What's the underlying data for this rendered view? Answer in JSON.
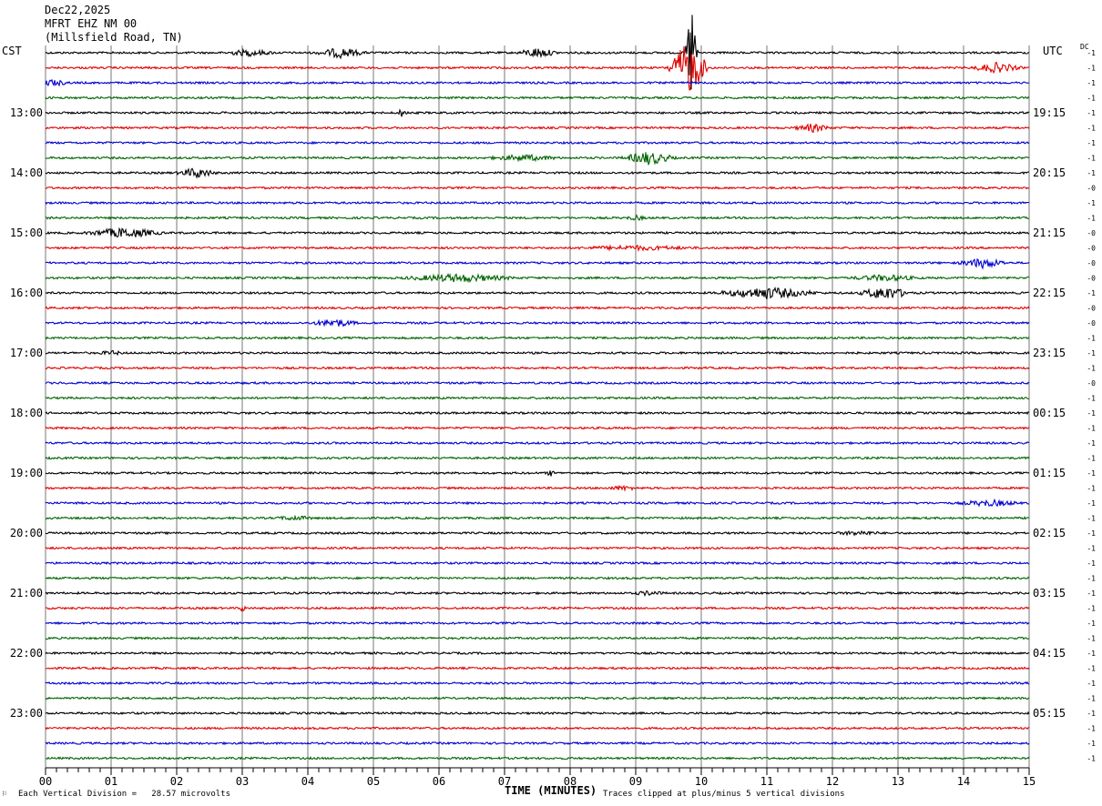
{
  "header": {
    "date": "Dec22,2025",
    "station": "MFRT EHZ NM 00",
    "location": "(Millsfield Road, TN)"
  },
  "labels": {
    "left_tz": "CST",
    "right_tz": "UTC",
    "dc": "DC",
    "x_axis_title": "TIME (MINUTES)",
    "scale_note": "Each Vertical Division =   28.57 microvolts",
    "clip_note": "Traces clipped at plus/minus 5 vertical divisions",
    "corner_mark": "⚐"
  },
  "chart_data": {
    "type": "line",
    "title": "",
    "xlabel": "TIME (MINUTES)",
    "x_ticks": [
      "00",
      "01",
      "02",
      "03",
      "04",
      "05",
      "06",
      "07",
      "08",
      "09",
      "10",
      "11",
      "12",
      "13",
      "14",
      "15"
    ],
    "xlim": [
      0,
      15
    ],
    "minutes_per_line": 15,
    "line_count": 48,
    "line_colors": [
      "#000000",
      "#e00000",
      "#0000d0",
      "#006400"
    ],
    "left_time_labels": [
      {
        "line": 4,
        "text": "13:00"
      },
      {
        "line": 8,
        "text": "14:00"
      },
      {
        "line": 12,
        "text": "15:00"
      },
      {
        "line": 16,
        "text": "16:00"
      },
      {
        "line": 20,
        "text": "17:00"
      },
      {
        "line": 24,
        "text": "18:00"
      },
      {
        "line": 28,
        "text": "19:00"
      },
      {
        "line": 32,
        "text": "20:00"
      },
      {
        "line": 36,
        "text": "21:00"
      },
      {
        "line": 40,
        "text": "22:00"
      },
      {
        "line": 44,
        "text": "23:00"
      }
    ],
    "right_time_labels": [
      {
        "line": 4,
        "text": "19:15"
      },
      {
        "line": 8,
        "text": "20:15"
      },
      {
        "line": 12,
        "text": "21:15"
      },
      {
        "line": 16,
        "text": "22:15"
      },
      {
        "line": 20,
        "text": "23:15"
      },
      {
        "line": 24,
        "text": "00:15"
      },
      {
        "line": 28,
        "text": "01:15"
      },
      {
        "line": 32,
        "text": "02:15"
      },
      {
        "line": 36,
        "text": "03:15"
      },
      {
        "line": 40,
        "text": "04:15"
      },
      {
        "line": 44,
        "text": "05:15"
      }
    ],
    "dc_offsets": [
      "-1",
      "-1",
      "-1",
      "-1",
      "-1",
      "-1",
      "-1",
      "-1",
      "-1",
      "-0",
      "-1",
      "-1",
      "-0",
      "-0",
      "-0",
      "-0",
      "-1",
      "-0",
      "-0",
      "-1",
      "-1",
      "-1",
      "-0",
      "-1",
      "-1",
      "-1",
      "-1",
      "-1",
      "-1",
      "-1",
      "-1",
      "-1",
      "-1",
      "-1",
      "-1",
      "-1",
      "-1",
      "-1",
      "-1",
      "-1",
      "-1",
      "-1",
      "-1",
      "-1",
      "-1",
      "-1",
      "-1",
      "-1"
    ],
    "events": [
      {
        "line": 0,
        "minute": 3.1,
        "dur": 0.6,
        "amp": 4
      },
      {
        "line": 0,
        "minute": 4.5,
        "dur": 0.5,
        "amp": 6
      },
      {
        "line": 0,
        "minute": 7.5,
        "dur": 0.4,
        "amp": 6
      },
      {
        "line": 0,
        "minute": 9.85,
        "dur": 0.1,
        "amp": 60
      },
      {
        "line": 1,
        "minute": 9.8,
        "dur": 0.35,
        "amp": 30
      },
      {
        "line": 1,
        "minute": 14.5,
        "dur": 0.5,
        "amp": 6
      },
      {
        "line": 2,
        "minute": 0.1,
        "dur": 0.4,
        "amp": 4
      },
      {
        "line": 4,
        "minute": 5.45,
        "dur": 0.1,
        "amp": 6
      },
      {
        "line": 5,
        "minute": 11.7,
        "dur": 0.4,
        "amp": 5
      },
      {
        "line": 7,
        "minute": 7.3,
        "dur": 0.8,
        "amp": 4
      },
      {
        "line": 7,
        "minute": 9.2,
        "dur": 0.5,
        "amp": 8
      },
      {
        "line": 8,
        "minute": 2.3,
        "dur": 0.4,
        "amp": 6
      },
      {
        "line": 11,
        "minute": 9.0,
        "dur": 0.3,
        "amp": 3
      },
      {
        "line": 12,
        "minute": 1.2,
        "dur": 0.8,
        "amp": 6
      },
      {
        "line": 13,
        "minute": 9.0,
        "dur": 1.6,
        "amp": 3
      },
      {
        "line": 14,
        "minute": 14.3,
        "dur": 0.5,
        "amp": 6
      },
      {
        "line": 15,
        "minute": 6.3,
        "dur": 1.2,
        "amp": 5
      },
      {
        "line": 15,
        "minute": 12.8,
        "dur": 0.8,
        "amp": 4
      },
      {
        "line": 16,
        "minute": 11.0,
        "dur": 1.0,
        "amp": 7
      },
      {
        "line": 16,
        "minute": 12.8,
        "dur": 0.5,
        "amp": 8
      },
      {
        "line": 18,
        "minute": 4.4,
        "dur": 0.5,
        "amp": 5
      },
      {
        "line": 20,
        "minute": 1.0,
        "dur": 0.3,
        "amp": 3
      },
      {
        "line": 28,
        "minute": 7.7,
        "dur": 0.1,
        "amp": 4
      },
      {
        "line": 29,
        "minute": 8.8,
        "dur": 0.4,
        "amp": 3
      },
      {
        "line": 30,
        "minute": 14.4,
        "dur": 0.7,
        "amp": 4
      },
      {
        "line": 31,
        "minute": 3.8,
        "dur": 0.5,
        "amp": 3
      },
      {
        "line": 32,
        "minute": 12.4,
        "dur": 0.6,
        "amp": 3
      },
      {
        "line": 36,
        "minute": 9.2,
        "dur": 0.4,
        "amp": 3
      },
      {
        "line": 37,
        "minute": 3.0,
        "dur": 0.1,
        "amp": 4
      }
    ]
  }
}
